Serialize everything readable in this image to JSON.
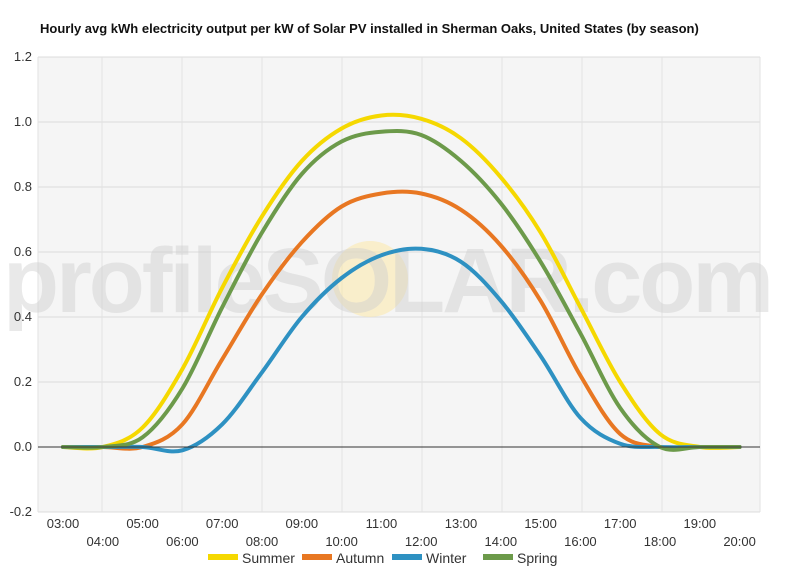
{
  "chart_data": {
    "type": "line",
    "title": "Hourly avg kWh electricity output per kW of Solar PV installed in Sherman Oaks, United States (by season)",
    "xlabel": "",
    "ylabel": "",
    "x": [
      "03:00",
      "04:00",
      "05:00",
      "06:00",
      "07:00",
      "08:00",
      "09:00",
      "10:00",
      "11:00",
      "12:00",
      "13:00",
      "14:00",
      "15:00",
      "16:00",
      "17:00",
      "18:00",
      "19:00",
      "20:00"
    ],
    "ylim": [
      -0.2,
      1.2
    ],
    "yticks": [
      "-0.2",
      "0.0",
      "0.2",
      "0.4",
      "0.6",
      "0.8",
      "1.0",
      "1.2"
    ],
    "grid": true,
    "legend_position": "bottom",
    "series": [
      {
        "name": "Summer",
        "color": "#f5d800",
        "values": [
          0.0,
          0.0,
          0.06,
          0.24,
          0.49,
          0.71,
          0.88,
          0.98,
          1.02,
          1.01,
          0.95,
          0.83,
          0.66,
          0.43,
          0.2,
          0.04,
          0.0,
          0.0
        ]
      },
      {
        "name": "Autumn",
        "color": "#e87722",
        "values": [
          0.0,
          0.0,
          0.0,
          0.07,
          0.27,
          0.47,
          0.63,
          0.74,
          0.78,
          0.78,
          0.73,
          0.62,
          0.45,
          0.22,
          0.04,
          0.0,
          0.0,
          0.0
        ]
      },
      {
        "name": "Winter",
        "color": "#2e91c2",
        "values": [
          0.0,
          0.0,
          0.0,
          -0.01,
          0.07,
          0.23,
          0.4,
          0.52,
          0.59,
          0.61,
          0.57,
          0.45,
          0.28,
          0.09,
          0.01,
          0.0,
          0.0,
          0.0
        ]
      },
      {
        "name": "Spring",
        "color": "#6c9a4a",
        "values": [
          0.0,
          0.0,
          0.03,
          0.18,
          0.43,
          0.66,
          0.84,
          0.94,
          0.97,
          0.96,
          0.88,
          0.75,
          0.57,
          0.35,
          0.12,
          0.0,
          0.0,
          0.0
        ]
      }
    ]
  },
  "watermark": {
    "text": "profileSOLAR.com"
  }
}
